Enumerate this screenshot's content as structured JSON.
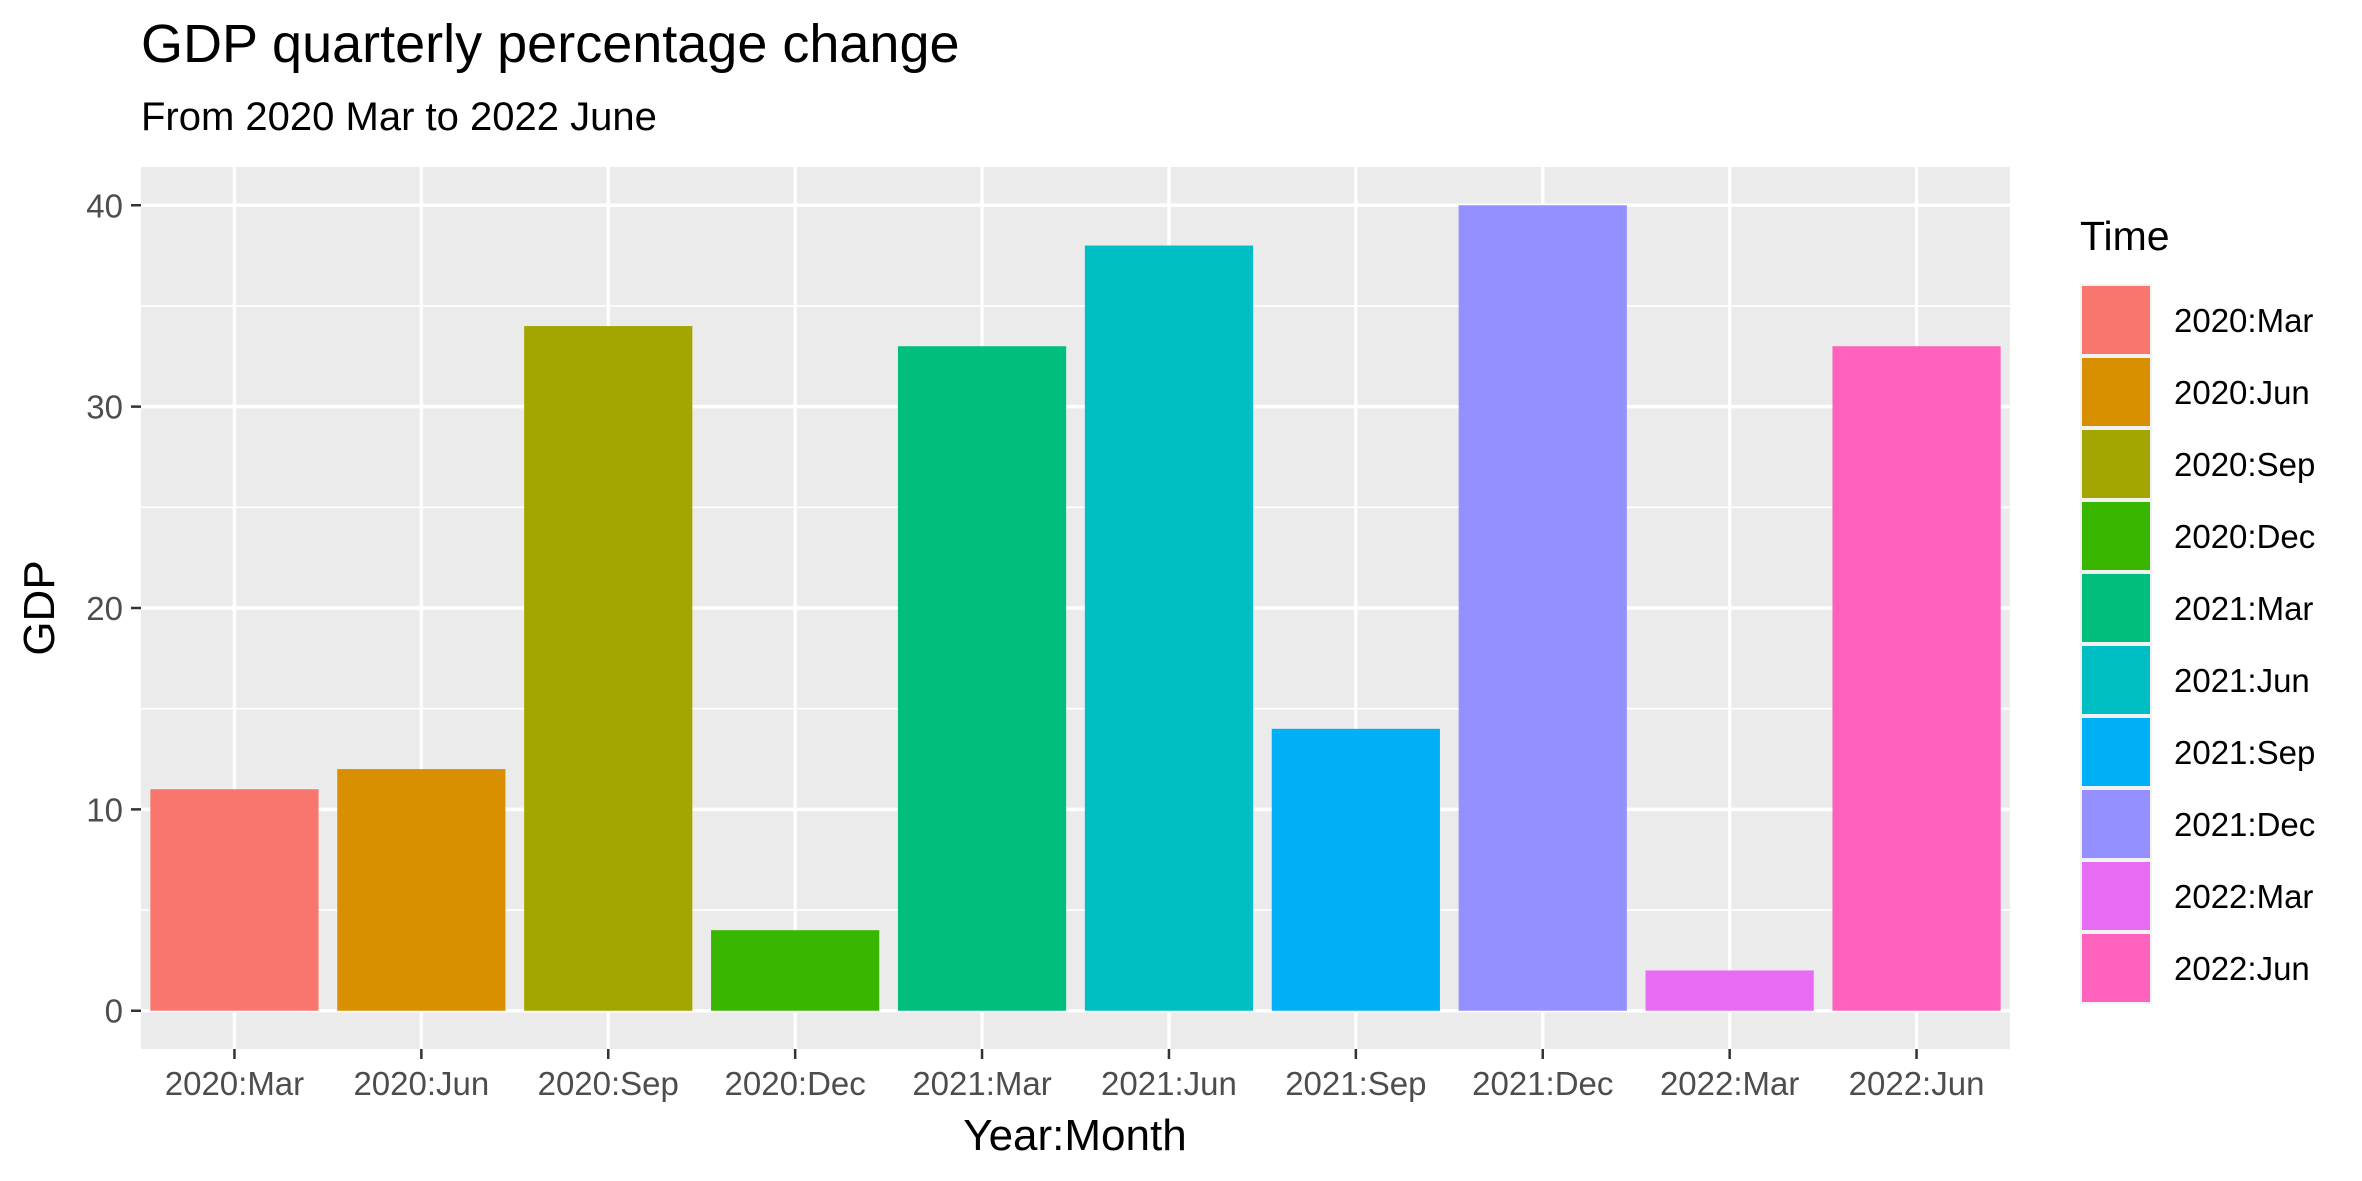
{
  "chart_data": {
    "type": "bar",
    "title": "GDP quarterly percentage change",
    "subtitle": "From 2020 Mar to 2022 June",
    "xlabel": "Year:Month",
    "ylabel": "GDP",
    "categories": [
      "2020:Mar",
      "2020:Jun",
      "2020:Sep",
      "2020:Dec",
      "2021:Mar",
      "2021:Jun",
      "2021:Sep",
      "2021:Dec",
      "2022:Mar",
      "2022:Jun"
    ],
    "values": [
      11,
      12,
      34,
      4,
      33,
      38,
      14,
      40,
      2,
      33
    ],
    "colors": [
      "#F8766D",
      "#D89000",
      "#A3A500",
      "#39B600",
      "#00BF7D",
      "#00BFC4",
      "#00B0F6",
      "#9590FF",
      "#E76BF3",
      "#FF62BC"
    ],
    "ylim": [
      -1.9,
      41.9
    ],
    "yticks": [
      0,
      10,
      20,
      30,
      40
    ],
    "grid": true,
    "legend": {
      "title": "Time",
      "position": "right"
    }
  }
}
